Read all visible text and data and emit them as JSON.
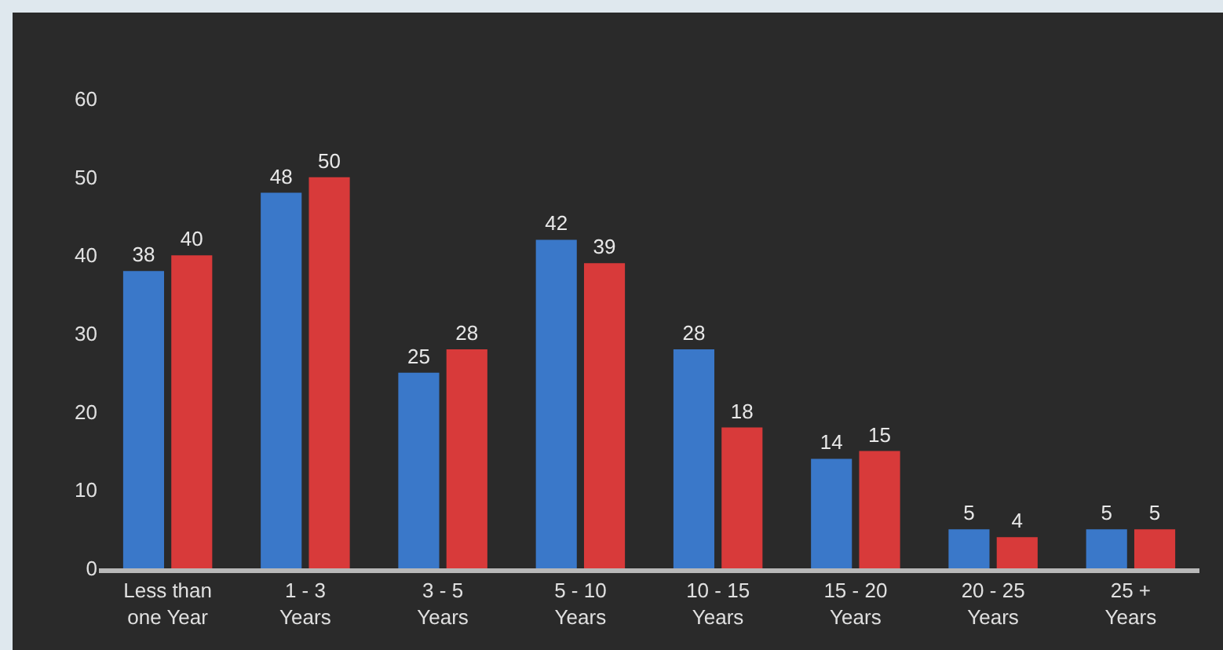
{
  "chart_data": {
    "type": "bar",
    "categories": [
      "Less than\none Year",
      "1 - 3\nYears",
      "3 - 5\nYears",
      "5 - 10\nYears",
      "10 - 15\nYears",
      "15 - 20\nYears",
      "20 - 25\nYears",
      "25 +\nYears"
    ],
    "series": [
      {
        "color": "#3a78c9",
        "values": [
          38,
          48,
          25,
          42,
          28,
          14,
          5,
          5
        ]
      },
      {
        "color": "#d83a3a",
        "values": [
          40,
          50,
          28,
          39,
          18,
          15,
          4,
          5
        ]
      }
    ],
    "ylim": [
      0,
      60
    ],
    "yticks": [
      0,
      10,
      20,
      30,
      40,
      50,
      60
    ],
    "data_labels": true,
    "grid": false
  }
}
